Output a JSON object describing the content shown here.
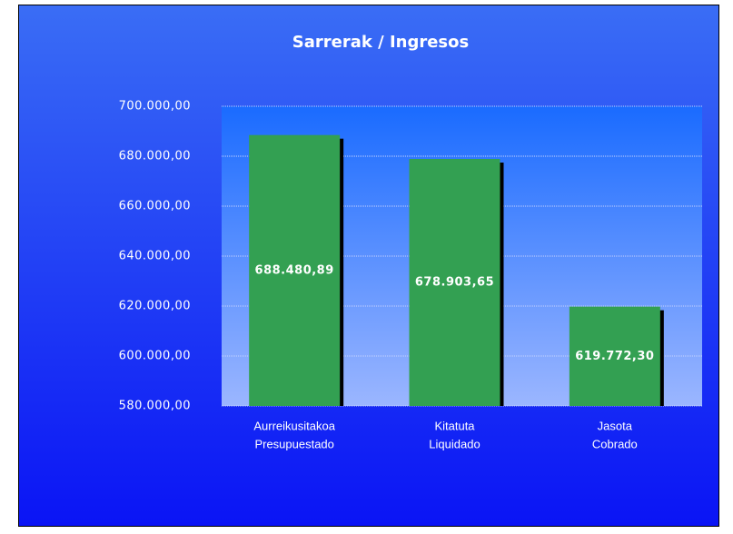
{
  "chart_data": {
    "type": "bar",
    "title": "Sarrerak / Ingresos",
    "categories": [
      [
        "Aurreikusitakoa",
        "Presupuestado"
      ],
      [
        "Kitatuta",
        "Liquidado"
      ],
      [
        "Jasota",
        "Cobrado"
      ]
    ],
    "values": [
      688480.89,
      678903.65,
      619772.3
    ],
    "value_labels": [
      "688.480,89",
      "678.903,65",
      "619.772,30"
    ],
    "color": "#33a052",
    "ylim": [
      580000,
      700000
    ],
    "yticks": [
      {
        "value": 580000,
        "label": "580.000,00"
      },
      {
        "value": 600000,
        "label": "600.000,00"
      },
      {
        "value": 620000,
        "label": "620.000,00"
      },
      {
        "value": 640000,
        "label": "640.000,00"
      },
      {
        "value": 660000,
        "label": "660.000,00"
      },
      {
        "value": 680000,
        "label": "680.000,00"
      },
      {
        "value": 700000,
        "label": "700.000,00"
      }
    ],
    "grid": true
  }
}
